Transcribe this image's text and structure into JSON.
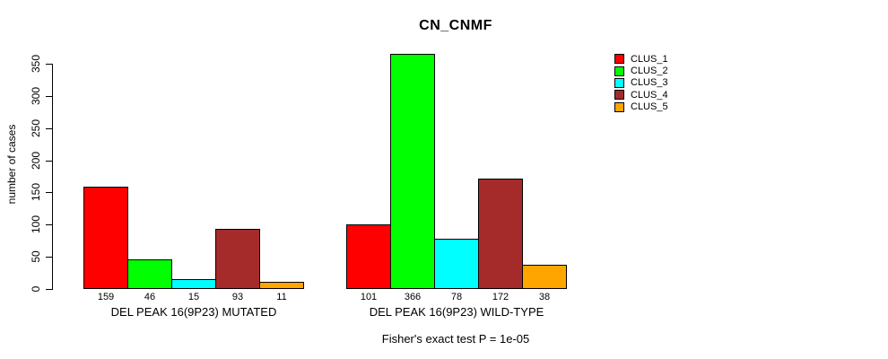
{
  "chart_data": {
    "type": "bar",
    "title": "CN_CNMF",
    "xlabel": "",
    "ylabel": "number of cases",
    "annotation": "Fisher's exact test P = 1e-05",
    "categories": [
      "DEL PEAK 16(9P23) MUTATED",
      "DEL PEAK 16(9P23) WILD-TYPE"
    ],
    "series": [
      {
        "name": "CLUS_1",
        "color": "#FF0000",
        "values": [
          159,
          101
        ]
      },
      {
        "name": "CLUS_2",
        "color": "#00FF00",
        "values": [
          46,
          366
        ]
      },
      {
        "name": "CLUS_3",
        "color": "#00FFFF",
        "values": [
          15,
          78
        ]
      },
      {
        "name": "CLUS_4",
        "color": "#A52A2A",
        "values": [
          93,
          172
        ]
      },
      {
        "name": "CLUS_5",
        "color": "#FFA500",
        "values": [
          11,
          38
        ]
      }
    ],
    "bar_value_labels": [
      [
        159,
        46,
        15,
        93,
        11
      ],
      [
        101,
        366,
        78,
        172,
        38
      ]
    ],
    "ylim": [
      0,
      350
    ],
    "yticks": [
      0,
      50,
      100,
      150,
      200,
      250,
      300,
      350
    ],
    "grid": false,
    "legend_position": "top-right",
    "legend_entries": [
      "CLUS_1",
      "CLUS_2",
      "CLUS_3",
      "CLUS_4",
      "CLUS_5"
    ],
    "axis_color": "#000000",
    "background_color": "#ffffff"
  }
}
